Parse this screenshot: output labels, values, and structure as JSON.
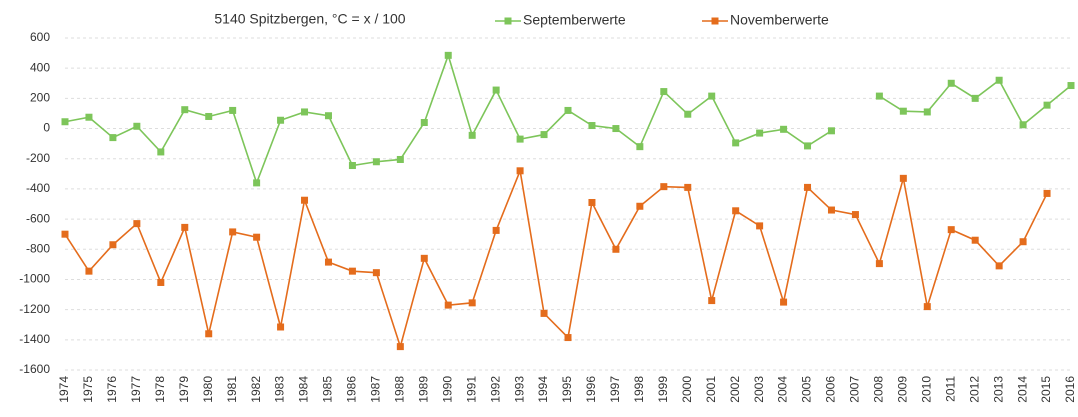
{
  "chart_data": {
    "type": "line",
    "title": "5140 Spitzbergen, °C = x / 100",
    "categories": [
      "1974",
      "1975",
      "1976",
      "1977",
      "1978",
      "1979",
      "1980",
      "1981",
      "1982",
      "1983",
      "1984",
      "1985",
      "1986",
      "1987",
      "1988",
      "1989",
      "1990",
      "1991",
      "1992",
      "1993",
      "1994",
      "1995",
      "1996",
      "1997",
      "1998",
      "1999",
      "2000",
      "2001",
      "2002",
      "2003",
      "2004",
      "2005",
      "2006",
      "2007",
      "2008",
      "2009",
      "2010",
      "2011",
      "2012",
      "2013",
      "2014",
      "2015",
      "2016"
    ],
    "series": [
      {
        "name": "Septemberwerte",
        "color": "#7dc55a",
        "values": [
          45,
          75,
          -60,
          15,
          -155,
          125,
          80,
          120,
          -360,
          55,
          110,
          85,
          -245,
          -220,
          -205,
          40,
          485,
          -45,
          255,
          -70,
          -40,
          120,
          20,
          0,
          -120,
          245,
          95,
          215,
          -95,
          -30,
          -5,
          -115,
          -15,
          null,
          215,
          115,
          110,
          300,
          200,
          320,
          25,
          155,
          285
        ]
      },
      {
        "name": "Novemberwerte",
        "color": "#e46c1c",
        "values": [
          -700,
          -945,
          -770,
          -630,
          -1020,
          -655,
          -1360,
          -685,
          -720,
          -1315,
          -475,
          -885,
          -945,
          -955,
          -1445,
          -860,
          -1170,
          -1155,
          -675,
          -280,
          -1225,
          -1385,
          -490,
          -800,
          -515,
          -385,
          -390,
          -1140,
          -545,
          -645,
          -1150,
          -390,
          -540,
          -570,
          -895,
          -330,
          -1180,
          -670,
          -740,
          -910,
          -750,
          -430,
          null
        ]
      }
    ],
    "ylim": [
      -1600,
      600
    ],
    "yticks": [
      -1600,
      -1400,
      -1200,
      -1000,
      -800,
      -600,
      -400,
      -200,
      0,
      200,
      400,
      600
    ],
    "grid": true,
    "legend": "top"
  }
}
